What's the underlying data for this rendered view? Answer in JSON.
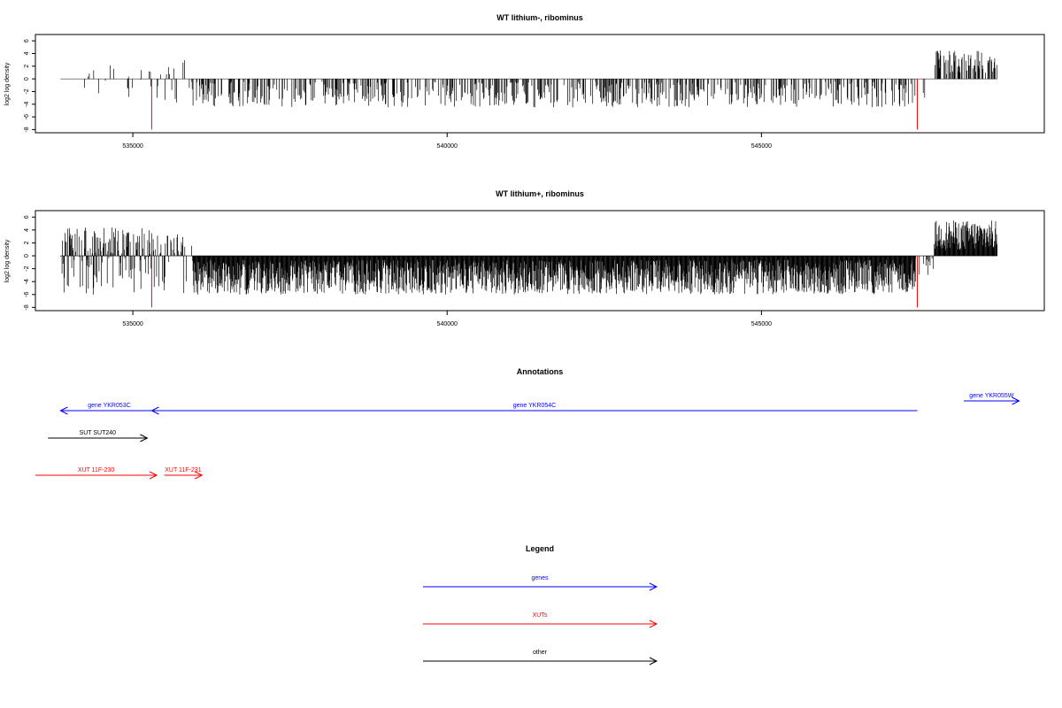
{
  "colors": {
    "gene": "#0000ff",
    "xut": "#ff0000",
    "other": "#000000",
    "marker": "#ff0000",
    "axis": "#000000"
  },
  "chart_data": [
    {
      "type": "bar",
      "title": "WT lithium-, ribominus",
      "ylabel": "log2 log density",
      "xlim": [
        533450,
        549500
      ],
      "ylim": [
        -8.5,
        7
      ],
      "yticks": [
        6,
        4,
        2,
        0,
        -2,
        -4,
        -6,
        -8
      ],
      "xticks": [
        535000,
        540000,
        545000
      ],
      "xtick_labels": [
        "535000",
        "540000",
        "545000"
      ],
      "data_start": 533850,
      "data_end": 548750,
      "marker_positions": [
        535300,
        547480
      ],
      "marker_value": -8,
      "profile": [
        {
          "from": 533850,
          "to": 534900,
          "lo": -3.5,
          "hi": 3,
          "density": 0.018
        },
        {
          "from": 534900,
          "to": 535950,
          "lo": -4,
          "hi": 3,
          "density": 0.035
        },
        {
          "from": 535950,
          "to": 547450,
          "lo": -4.5,
          "hi": 0,
          "density": 0.06
        },
        {
          "from": 547450,
          "to": 547750,
          "lo": -4,
          "hi": 0,
          "density": 0.02
        },
        {
          "from": 547750,
          "to": 548750,
          "lo": 0,
          "hi": 4.5,
          "density": 0.09
        }
      ]
    },
    {
      "type": "bar",
      "title": "WT lithium+, ribominus",
      "ylabel": "log2 log density",
      "xlim": [
        533450,
        549500
      ],
      "ylim": [
        -8.5,
        7
      ],
      "yticks": [
        6,
        4,
        2,
        0,
        -2,
        -4,
        -6,
        -8
      ],
      "xticks": [
        535000,
        540000,
        545000
      ],
      "xtick_labels": [
        "535000",
        "540000",
        "545000"
      ],
      "data_start": 533850,
      "data_end": 548750,
      "marker_positions": [
        535300,
        547480
      ],
      "marker_value": -8,
      "profile": [
        {
          "from": 533850,
          "to": 535300,
          "lo": -6,
          "hi": 4.5,
          "density": 0.12
        },
        {
          "from": 535300,
          "to": 535950,
          "lo": -6,
          "hi": 3.5,
          "density": 0.06
        },
        {
          "from": 535950,
          "to": 547450,
          "lo": -6,
          "hi": 0,
          "density": 0.3
        },
        {
          "from": 547450,
          "to": 547750,
          "lo": -3,
          "hi": 0,
          "density": 0.05
        },
        {
          "from": 547750,
          "to": 548750,
          "lo": 0,
          "hi": 5.5,
          "density": 0.2
        }
      ]
    }
  ],
  "annotations": {
    "title": "Annotations",
    "features": [
      {
        "label": "gene YKR053C",
        "kind": "gene",
        "start": 533850,
        "end": 535400,
        "strand": "-",
        "row": 0
      },
      {
        "label": "gene YKR054C",
        "kind": "gene",
        "start": 535300,
        "end": 547480,
        "strand": "-",
        "row": 0
      },
      {
        "label": "gene YKR055W",
        "kind": "gene",
        "start": 548220,
        "end": 549100,
        "strand": "+",
        "row": -1
      },
      {
        "label": "SUT SUT240",
        "kind": "other",
        "start": 533650,
        "end": 535230,
        "strand": "+",
        "row": 1
      },
      {
        "label": "XUT 11F-230",
        "kind": "xut",
        "start": 533450,
        "end": 535380,
        "strand": "+",
        "row": 3
      },
      {
        "label": "XUT 11F-231",
        "kind": "xut",
        "start": 535500,
        "end": 536100,
        "strand": "+",
        "row": 3
      }
    ]
  },
  "legend": {
    "title": "Legend",
    "items": [
      {
        "label": "genes",
        "kind": "gene"
      },
      {
        "label": "XUTs",
        "kind": "xut"
      },
      {
        "label": "other",
        "kind": "other"
      }
    ]
  }
}
